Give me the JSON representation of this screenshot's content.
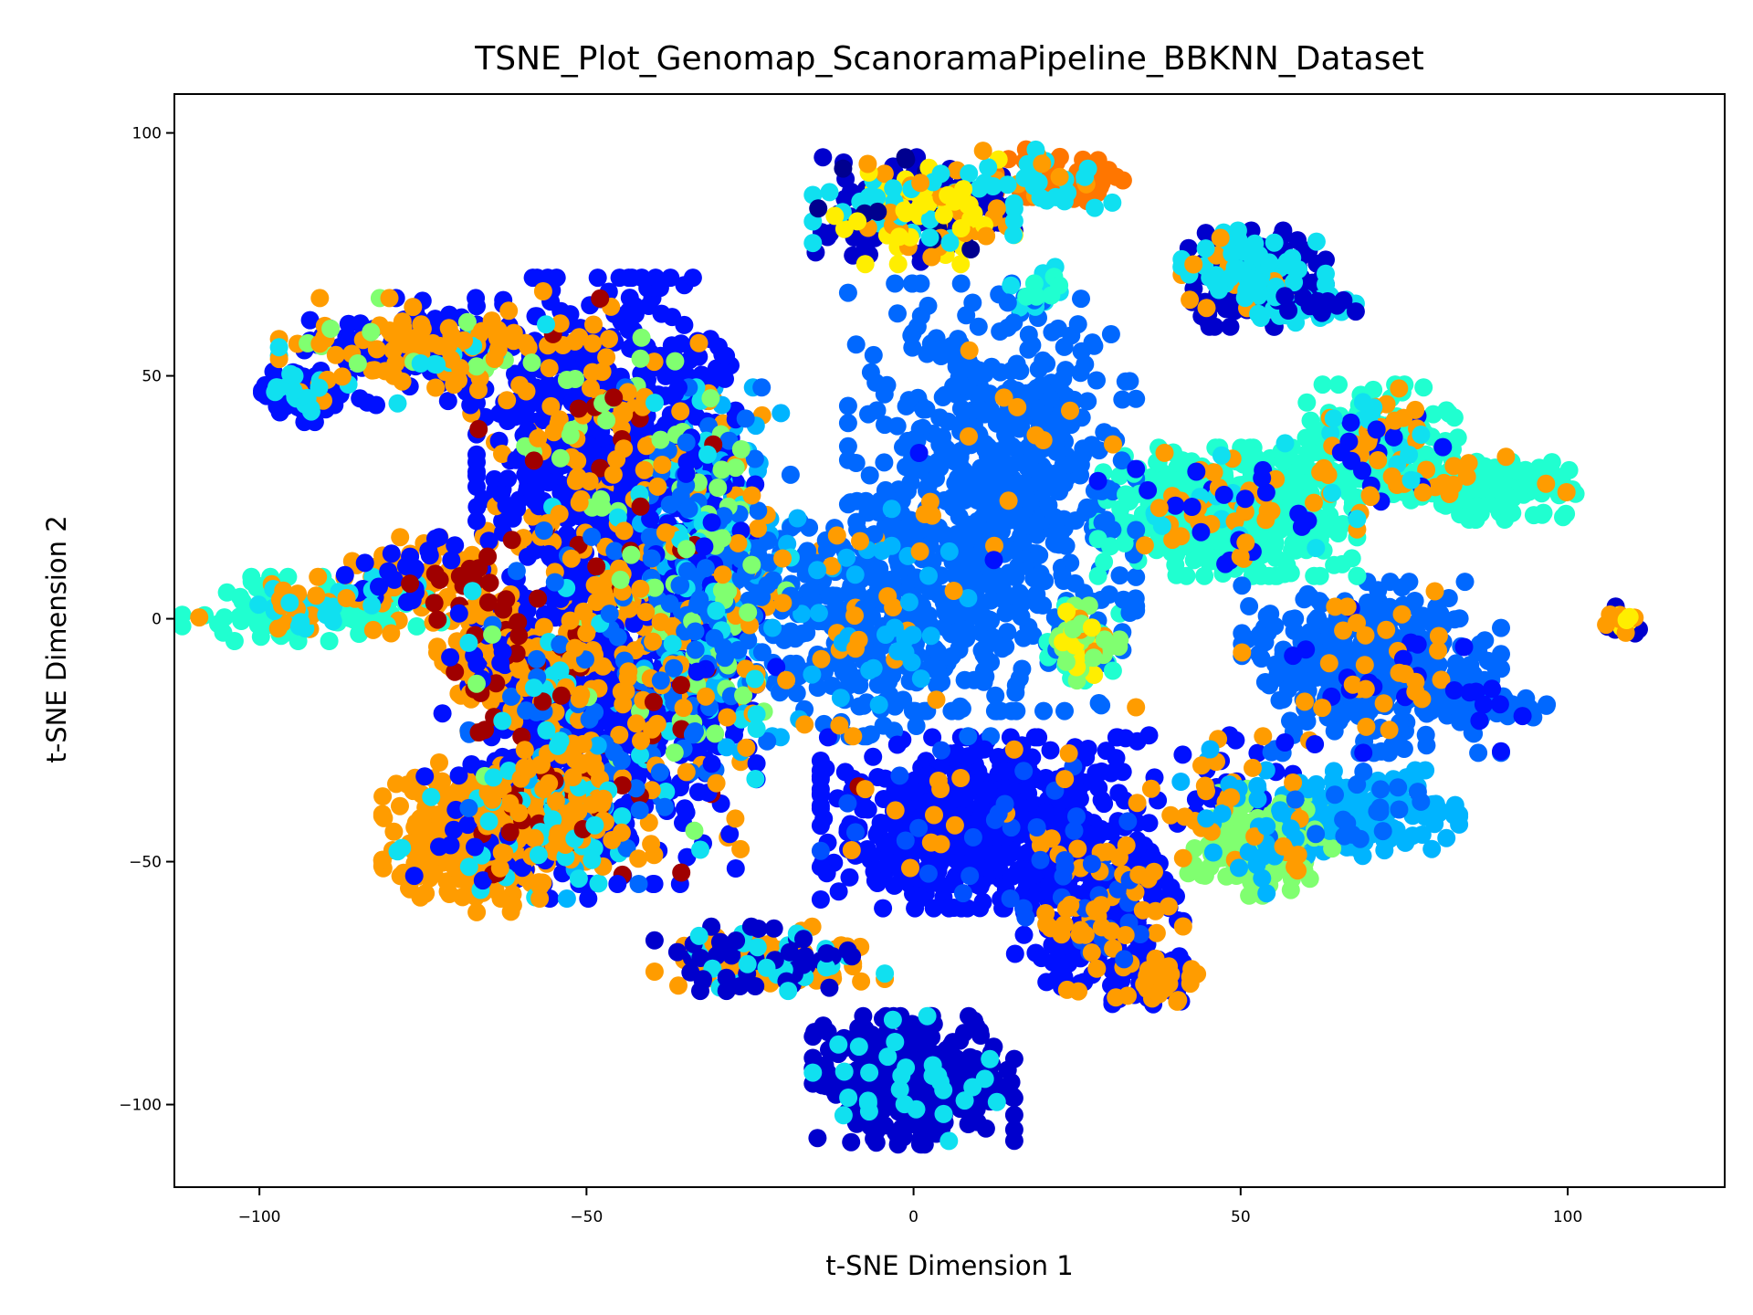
{
  "chart_data": {
    "type": "scatter",
    "title": "TSNE_Plot_Genomap_ScanoramaPipeline_BBKNN_Dataset",
    "xlabel": "t-SNE Dimension 1",
    "ylabel": "t-SNE Dimension 2",
    "xlim": [
      -113,
      124
    ],
    "ylim": [
      -117,
      108
    ],
    "xticks": [
      {
        "value": -100,
        "label": "−100"
      },
      {
        "value": -50,
        "label": "−50"
      },
      {
        "value": 0,
        "label": "0"
      },
      {
        "value": 50,
        "label": "50"
      },
      {
        "value": 100,
        "label": "100"
      }
    ],
    "yticks": [
      {
        "value": 100,
        "label": "100"
      },
      {
        "value": 50,
        "label": "50"
      },
      {
        "value": 0,
        "label": "0"
      },
      {
        "value": -50,
        "label": "−50"
      },
      {
        "value": -100,
        "label": "−100"
      }
    ],
    "grid": false,
    "legend": "none",
    "colormap": "jet",
    "colors": {
      "navy": "#00008f",
      "dark_blue": "#0000cd",
      "blue": "#0010ff",
      "medium_blue": "#0050ff",
      "azure": "#0068ff",
      "sky": "#00b4ff",
      "cyan": "#10e0f0",
      "aquamarine": "#20ffd0",
      "light_green": "#80ff70",
      "yellow": "#ffee00",
      "orange": "#ff9c00",
      "dark_orange": "#ff7600",
      "dark_red": "#a00000"
    },
    "clusters": [
      {
        "name": "center-large",
        "cx": 12,
        "cy": 25,
        "sx": 10,
        "sy": 20,
        "n": 700,
        "colors": [
          [
            "azure",
            0.97
          ],
          [
            "orange",
            0.02
          ],
          [
            "blue",
            0.01
          ]
        ]
      },
      {
        "name": "center-arm",
        "cx": -8,
        "cy": 0,
        "sx": 9,
        "sy": 11,
        "n": 350,
        "colors": [
          [
            "azure",
            0.85
          ],
          [
            "sky",
            0.1
          ],
          [
            "orange",
            0.05
          ]
        ]
      },
      {
        "name": "left-arm",
        "cx": -32,
        "cy": 8,
        "sx": 6,
        "sy": 18,
        "n": 450,
        "colors": [
          [
            "sky",
            0.35
          ],
          [
            "azure",
            0.25
          ],
          [
            "light_green",
            0.15
          ],
          [
            "cyan",
            0.1
          ],
          [
            "blue",
            0.1
          ],
          [
            "orange",
            0.05
          ]
        ]
      },
      {
        "name": "left-main-top",
        "cx": -47,
        "cy": 35,
        "sx": 9,
        "sy": 16,
        "n": 750,
        "colors": [
          [
            "blue",
            0.86
          ],
          [
            "orange",
            0.1
          ],
          [
            "light_green",
            0.02
          ],
          [
            "dark_red",
            0.02
          ]
        ]
      },
      {
        "name": "left-main-bottom",
        "cx": -46,
        "cy": -15,
        "sx": 10,
        "sy": 18,
        "n": 750,
        "colors": [
          [
            "blue",
            0.65
          ],
          [
            "orange",
            0.18
          ],
          [
            "azure",
            0.08
          ],
          [
            "cyan",
            0.04
          ],
          [
            "dark_red",
            0.03
          ],
          [
            "light_green",
            0.02
          ]
        ]
      },
      {
        "name": "top-arm",
        "cx": -75,
        "cy": 55,
        "sx": 10,
        "sy": 5,
        "n": 230,
        "colors": [
          [
            "blue",
            0.55
          ],
          [
            "orange",
            0.35
          ],
          [
            "light_green",
            0.05
          ],
          [
            "cyan",
            0.05
          ]
        ]
      },
      {
        "name": "top-arm-tip",
        "cx": -93,
        "cy": 46,
        "sx": 3,
        "sy": 2.5,
        "n": 80,
        "colors": [
          [
            "blue",
            0.75
          ],
          [
            "cyan",
            0.15
          ],
          [
            "orange",
            0.1
          ]
        ]
      },
      {
        "name": "far-left-arm",
        "cx": -92,
        "cy": 2,
        "sx": 9,
        "sy": 3,
        "n": 160,
        "colors": [
          [
            "aquamarine",
            0.8
          ],
          [
            "cyan",
            0.1
          ],
          [
            "orange",
            0.1
          ]
        ]
      },
      {
        "name": "far-left-mid",
        "cx": -76,
        "cy": 8,
        "sx": 5,
        "sy": 4,
        "n": 100,
        "colors": [
          [
            "orange",
            0.5
          ],
          [
            "blue",
            0.3
          ],
          [
            "dark_red",
            0.1
          ],
          [
            "cyan",
            0.1
          ]
        ]
      },
      {
        "name": "bottom-left-orange",
        "cx": -68,
        "cy": -45,
        "sx": 6,
        "sy": 7,
        "n": 280,
        "colors": [
          [
            "orange",
            0.9
          ],
          [
            "cyan",
            0.05
          ],
          [
            "blue",
            0.05
          ]
        ]
      },
      {
        "name": "bottom-left-mix",
        "cx": -55,
        "cy": -40,
        "sx": 5,
        "sy": 8,
        "n": 280,
        "colors": [
          [
            "blue",
            0.45
          ],
          [
            "orange",
            0.3
          ],
          [
            "cyan",
            0.15
          ],
          [
            "dark_red",
            0.05
          ],
          [
            "sky",
            0.05
          ]
        ]
      },
      {
        "name": "mid-left-orange",
        "cx": -64,
        "cy": -8,
        "sx": 4,
        "sy": 7,
        "n": 140,
        "colors": [
          [
            "orange",
            0.85
          ],
          [
            "dark_red",
            0.1
          ],
          [
            "blue",
            0.05
          ]
        ]
      },
      {
        "name": "bottom-cluster",
        "cx": 0,
        "cy": -95,
        "sx": 7,
        "sy": 6,
        "n": 380,
        "colors": [
          [
            "dark_blue",
            0.92
          ],
          [
            "cyan",
            0.08
          ]
        ]
      },
      {
        "name": "bottom-cluster-arm",
        "cx": -22,
        "cy": -70,
        "sx": 8,
        "sy": 3,
        "n": 160,
        "colors": [
          [
            "orange",
            0.5
          ],
          [
            "dark_blue",
            0.3
          ],
          [
            "cyan",
            0.2
          ]
        ]
      },
      {
        "name": "lower-mid-main",
        "cx": 10,
        "cy": -42,
        "sx": 11,
        "sy": 8,
        "n": 650,
        "colors": [
          [
            "blue",
            0.92
          ],
          [
            "medium_blue",
            0.06
          ],
          [
            "orange",
            0.02
          ]
        ]
      },
      {
        "name": "lower-mid-tail",
        "cx": 28,
        "cy": -60,
        "sx": 6,
        "sy": 8,
        "n": 260,
        "colors": [
          [
            "blue",
            0.75
          ],
          [
            "orange",
            0.2
          ],
          [
            "medium_blue",
            0.05
          ]
        ]
      },
      {
        "name": "lower-mid-foot",
        "cx": 37,
        "cy": -74,
        "sx": 3,
        "sy": 3,
        "n": 70,
        "colors": [
          [
            "blue",
            0.7
          ],
          [
            "orange",
            0.3
          ]
        ]
      },
      {
        "name": "right-mid-blue",
        "cx": 70,
        "cy": -10,
        "sx": 9,
        "sy": 8,
        "n": 420,
        "colors": [
          [
            "azure",
            0.9
          ],
          [
            "orange",
            0.07
          ],
          [
            "blue",
            0.03
          ]
        ]
      },
      {
        "name": "right-mid-tail",
        "cx": 88,
        "cy": -17,
        "sx": 4,
        "sy": 2,
        "n": 60,
        "colors": [
          [
            "azure",
            0.9
          ],
          [
            "blue",
            0.1
          ]
        ]
      },
      {
        "name": "right-low-sky",
        "cx": 68,
        "cy": -40,
        "sx": 7,
        "sy": 4,
        "n": 200,
        "colors": [
          [
            "sky",
            0.9
          ],
          [
            "azure",
            0.1
          ]
        ]
      },
      {
        "name": "right-low-green",
        "cx": 53,
        "cy": -46,
        "sx": 5,
        "sy": 5,
        "n": 180,
        "colors": [
          [
            "light_green",
            0.82
          ],
          [
            "sky",
            0.12
          ],
          [
            "orange",
            0.06
          ]
        ]
      },
      {
        "name": "right-low-link",
        "cx": 47,
        "cy": -35,
        "sx": 5,
        "sy": 5,
        "n": 60,
        "colors": [
          [
            "blue",
            0.5
          ],
          [
            "orange",
            0.3
          ],
          [
            "sky",
            0.2
          ]
        ]
      },
      {
        "name": "right-upper-band-left",
        "cx": 48,
        "cy": 22,
        "sx": 9,
        "sy": 6,
        "n": 500,
        "colors": [
          [
            "aquamarine",
            0.85
          ],
          [
            "orange",
            0.08
          ],
          [
            "blue",
            0.04
          ],
          [
            "cyan",
            0.03
          ]
        ]
      },
      {
        "name": "right-upper-band-mid",
        "cx": 70,
        "cy": 35,
        "sx": 6,
        "sy": 6,
        "n": 200,
        "colors": [
          [
            "aquamarine",
            0.7
          ],
          [
            "orange",
            0.15
          ],
          [
            "cyan",
            0.1
          ],
          [
            "blue",
            0.05
          ]
        ]
      },
      {
        "name": "right-upper-band-right",
        "cx": 88,
        "cy": 27,
        "sx": 6,
        "sy": 3,
        "n": 160,
        "colors": [
          [
            "aquamarine",
            0.92
          ],
          [
            "orange",
            0.08
          ]
        ]
      },
      {
        "name": "small-center-right",
        "cx": 26,
        "cy": -5,
        "sx": 2.5,
        "sy": 3.5,
        "n": 90,
        "colors": [
          [
            "aquamarine",
            0.45
          ],
          [
            "light_green",
            0.3
          ],
          [
            "yellow",
            0.15
          ],
          [
            "orange",
            0.1
          ]
        ]
      },
      {
        "name": "top-center",
        "cx": 0,
        "cy": 84,
        "sx": 7,
        "sy": 5,
        "n": 260,
        "colors": [
          [
            "dark_blue",
            0.45
          ],
          [
            "yellow",
            0.2
          ],
          [
            "orange",
            0.15
          ],
          [
            "cyan",
            0.15
          ],
          [
            "navy",
            0.05
          ]
        ]
      },
      {
        "name": "top-center-right",
        "cx": 21,
        "cy": 90,
        "sx": 5,
        "sy": 3,
        "n": 80,
        "colors": [
          [
            "dark_orange",
            0.6
          ],
          [
            "orange",
            0.2
          ],
          [
            "cyan",
            0.2
          ]
        ]
      },
      {
        "name": "top-center-tail",
        "cx": 20,
        "cy": 68,
        "sx": 2.5,
        "sy": 2,
        "n": 25,
        "colors": [
          [
            "cyan",
            0.6
          ],
          [
            "aquamarine",
            0.4
          ]
        ]
      },
      {
        "name": "top-right",
        "cx": 52,
        "cy": 70,
        "sx": 5,
        "sy": 4.5,
        "n": 230,
        "colors": [
          [
            "dark_blue",
            0.62
          ],
          [
            "cyan",
            0.3
          ],
          [
            "orange",
            0.08
          ]
        ]
      },
      {
        "name": "top-right-tail",
        "cx": 61,
        "cy": 65,
        "sx": 3,
        "sy": 1.5,
        "n": 45,
        "colors": [
          [
            "cyan",
            0.6
          ],
          [
            "dark_blue",
            0.4
          ]
        ]
      },
      {
        "name": "far-right-small",
        "cx": 108,
        "cy": -1,
        "sx": 1.6,
        "sy": 1.6,
        "n": 25,
        "colors": [
          [
            "dark_blue",
            0.5
          ],
          [
            "orange",
            0.25
          ],
          [
            "yellow",
            0.25
          ]
        ]
      },
      {
        "name": "scattered-dark-red",
        "cx": -48,
        "cy": -20,
        "sx": 18,
        "sy": 22,
        "n": 18,
        "colors": [
          [
            "dark_red",
            1.0
          ]
        ]
      },
      {
        "name": "scattered-orange",
        "cx": -40,
        "cy": 10,
        "sx": 16,
        "sy": 25,
        "n": 60,
        "colors": [
          [
            "orange",
            1.0
          ]
        ]
      }
    ]
  }
}
